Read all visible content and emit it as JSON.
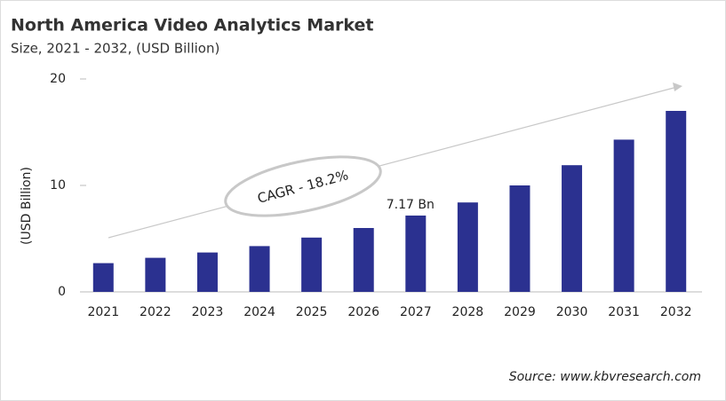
{
  "chart_data": {
    "type": "bar",
    "title": "North America Video Analytics Market",
    "subtitle": "Size, 2021 - 2032, (USD Billion)",
    "y_label": "(USD Billion)",
    "categories": [
      "2021",
      "2022",
      "2023",
      "2024",
      "2025",
      "2026",
      "2027",
      "2028",
      "2029",
      "2030",
      "2031",
      "2032"
    ],
    "values": [
      2.7,
      3.2,
      3.7,
      4.3,
      5.1,
      6.0,
      7.17,
      8.4,
      10.0,
      11.9,
      14.3,
      17.0
    ],
    "value_labels": [
      null,
      null,
      null,
      null,
      null,
      null,
      "7.17 Bn",
      null,
      null,
      null,
      null,
      null
    ],
    "color": "#2b3190",
    "ylim": [
      0,
      20
    ],
    "yticks": [
      0,
      10,
      20
    ],
    "grid": false,
    "annotation": "CAGR - 18.2%",
    "source": "Source: www.kbvresearch.com"
  }
}
